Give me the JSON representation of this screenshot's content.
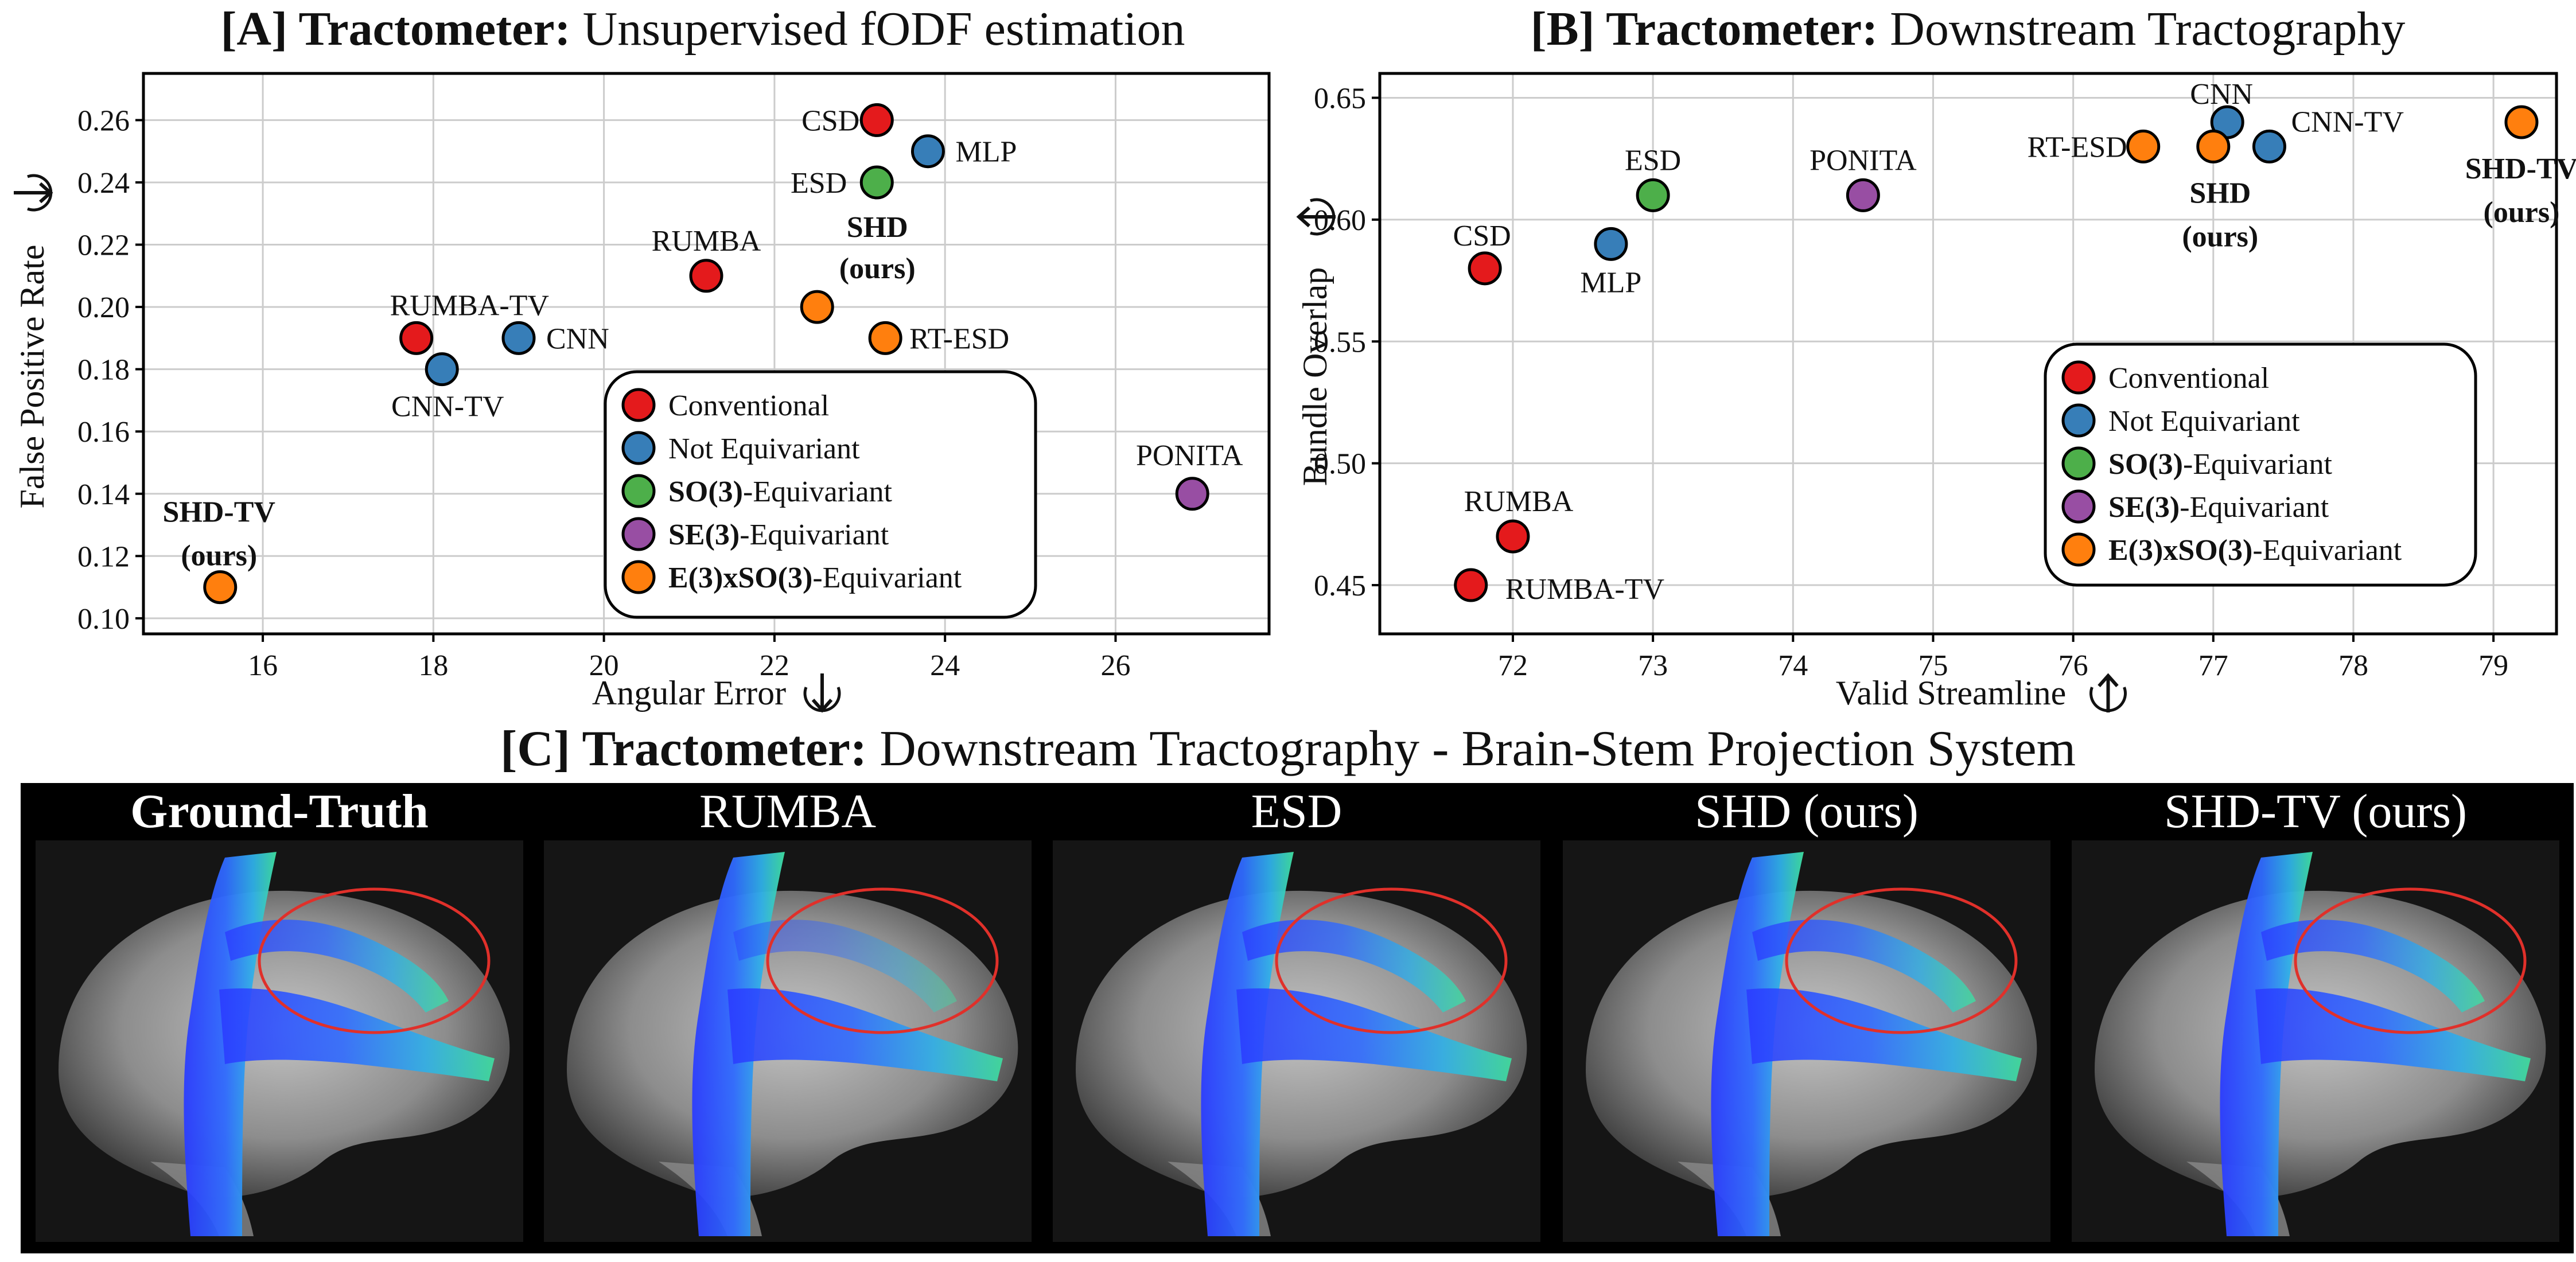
{
  "panel_a": {
    "title_prefix": "[A] Tractometer:",
    "title_rest": " Unsupervised fODF estimation"
  },
  "panel_b": {
    "title_prefix": "[B] Tractometer:",
    "title_rest": " Downstream Tractography"
  },
  "panel_c": {
    "title_prefix": "[C] Tractometer:",
    "title_rest": " Downstream Tractography - Brain-Stem Projection System",
    "columns": [
      {
        "label": "Ground-Truth",
        "bold": true
      },
      {
        "label": "RUMBA",
        "bold": false
      },
      {
        "label": "ESD",
        "bold": false
      },
      {
        "label": "SHD (ours)",
        "bold": false
      },
      {
        "label": "SHD-TV (ours)",
        "bold": false
      }
    ]
  },
  "colors": {
    "Conventional": "#e41a1c",
    "Not Equivariant": "#377eb8",
    "SO(3)-Equivariant": "#4daf4a",
    "SE(3)-Equivariant": "#984ea3",
    "E(3)xSO(3)-Equivariant": "#ff7f0e"
  },
  "legend": [
    {
      "bold": "",
      "rest": "Conventional",
      "group": "Conventional"
    },
    {
      "bold": "",
      "rest": "Not Equivariant",
      "group": "Not Equivariant"
    },
    {
      "bold": "SO(3)",
      "rest": "-Equivariant",
      "group": "SO(3)-Equivariant"
    },
    {
      "bold": "SE(3)",
      "rest": "-Equivariant",
      "group": "SE(3)-Equivariant"
    },
    {
      "bold": "E(3)xSO(3)",
      "rest": "-Equivariant",
      "group": "E(3)xSO(3)-Equivariant"
    }
  ],
  "chart_data": [
    {
      "type": "scatter",
      "title": "[A] Tractometer: Unsupervised fODF estimation",
      "xlabel": "Angular Error",
      "ylabel": "False Positive Rate",
      "xlim": [
        14.6,
        27.8
      ],
      "ylim": [
        0.095,
        0.275
      ],
      "xticks": [
        16,
        18,
        20,
        22,
        24,
        26
      ],
      "yticks": [
        0.1,
        0.12,
        0.14,
        0.16,
        0.18,
        0.2,
        0.22,
        0.24,
        0.26
      ],
      "grid": true,
      "legend_position": "lower-right",
      "points": [
        {
          "label": "CSD",
          "x": 23.2,
          "y": 0.26,
          "group": "Conventional"
        },
        {
          "label": "MLP",
          "x": 23.8,
          "y": 0.25,
          "group": "Not Equivariant"
        },
        {
          "label": "ESD",
          "x": 23.2,
          "y": 0.24,
          "group": "SO(3)-Equivariant"
        },
        {
          "label": "RUMBA",
          "x": 21.2,
          "y": 0.21,
          "group": "Conventional"
        },
        {
          "label": "SHD (ours)",
          "x": 22.5,
          "y": 0.2,
          "group": "E(3)xSO(3)-Equivariant"
        },
        {
          "label": "RUMBA-TV",
          "x": 17.8,
          "y": 0.19,
          "group": "Conventional"
        },
        {
          "label": "CNN",
          "x": 19.0,
          "y": 0.19,
          "group": "Not Equivariant"
        },
        {
          "label": "CNN-TV",
          "x": 18.1,
          "y": 0.18,
          "group": "Not Equivariant"
        },
        {
          "label": "RT-ESD",
          "x": 23.3,
          "y": 0.19,
          "group": "E(3)xSO(3)-Equivariant"
        },
        {
          "label": "PONITA",
          "x": 26.9,
          "y": 0.14,
          "group": "SE(3)-Equivariant"
        },
        {
          "label": "SHD-TV (ours)",
          "x": 15.5,
          "y": 0.11,
          "group": "E(3)xSO(3)-Equivariant"
        }
      ]
    },
    {
      "type": "scatter",
      "title": "[B] Tractometer: Downstream Tractography",
      "xlabel": "Valid Streamline",
      "ylabel": "Bundle Overlap",
      "xlim": [
        71.05,
        79.45
      ],
      "ylim": [
        0.43,
        0.66
      ],
      "xticks": [
        72,
        73,
        74,
        75,
        76,
        77,
        78,
        79
      ],
      "yticks": [
        0.45,
        0.5,
        0.55,
        0.6,
        0.65
      ],
      "grid": true,
      "legend_position": "lower-right",
      "points": [
        {
          "label": "CNN",
          "x": 77.1,
          "y": 0.64,
          "group": "Not Equivariant"
        },
        {
          "label": "CNN-TV",
          "x": 77.4,
          "y": 0.63,
          "group": "Not Equivariant"
        },
        {
          "label": "RT-ESD",
          "x": 76.5,
          "y": 0.63,
          "group": "E(3)xSO(3)-Equivariant"
        },
        {
          "label": "SHD (ours)",
          "x": 77.0,
          "y": 0.63,
          "group": "E(3)xSO(3)-Equivariant"
        },
        {
          "label": "SHD-TV (ours)",
          "x": 79.2,
          "y": 0.64,
          "group": "E(3)xSO(3)-Equivariant"
        },
        {
          "label": "PONITA",
          "x": 74.5,
          "y": 0.61,
          "group": "SE(3)-Equivariant"
        },
        {
          "label": "ESD",
          "x": 73.0,
          "y": 0.61,
          "group": "SO(3)-Equivariant"
        },
        {
          "label": "MLP",
          "x": 72.7,
          "y": 0.59,
          "group": "Not Equivariant"
        },
        {
          "label": "CSD",
          "x": 71.8,
          "y": 0.58,
          "group": "Conventional"
        },
        {
          "label": "RUMBA",
          "x": 72.0,
          "y": 0.47,
          "group": "Conventional"
        },
        {
          "label": "RUMBA-TV",
          "x": 71.7,
          "y": 0.45,
          "group": "Conventional"
        }
      ]
    }
  ]
}
